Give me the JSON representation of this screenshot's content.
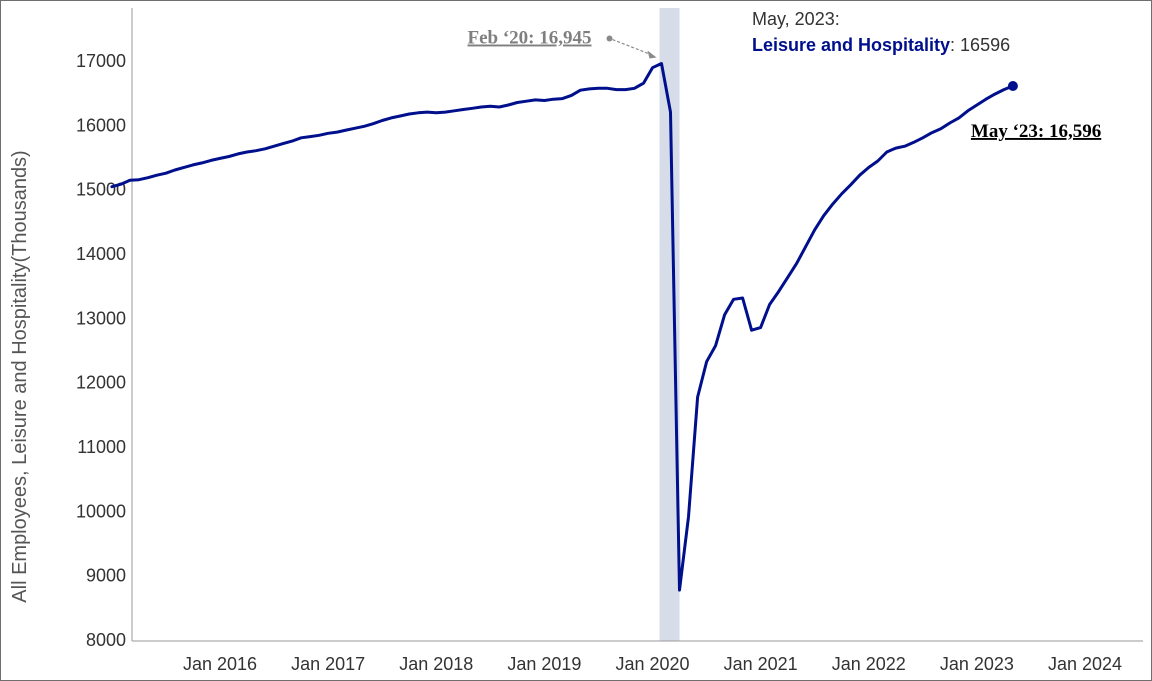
{
  "chart_data": {
    "type": "line",
    "ylabel": "All Employees, Leisure and Hospitality(Thousands)",
    "xlabel": "",
    "ylim": [
      8000,
      17600
    ],
    "yticks": [
      8000,
      9000,
      10000,
      11000,
      12000,
      13000,
      14000,
      15000,
      16000,
      17000
    ],
    "xticks": [
      {
        "label": "Jan 2016",
        "value": "2016-01"
      },
      {
        "label": "Jan 2017",
        "value": "2017-01"
      },
      {
        "label": "Jan 2018",
        "value": "2018-01"
      },
      {
        "label": "Jan 2019",
        "value": "2019-01"
      },
      {
        "label": "Jan 2020",
        "value": "2020-01"
      },
      {
        "label": "Jan 2021",
        "value": "2021-01"
      },
      {
        "label": "Jan 2022",
        "value": "2022-01"
      },
      {
        "label": "Jan 2023",
        "value": "2023-01"
      },
      {
        "label": "Jan 2024",
        "value": "2024-01"
      }
    ],
    "xlim": [
      "2015-01",
      "2024-06"
    ],
    "recession_band": {
      "start": "2020-02",
      "end": "2020-04"
    },
    "grid": false,
    "line_color": "#000f8c",
    "band_color": "#d6dde9",
    "series": [
      {
        "name": "Leisure and Hospitality",
        "points": [
          [
            "2015-01",
            15030
          ],
          [
            "2015-02",
            15070
          ],
          [
            "2015-03",
            15130
          ],
          [
            "2015-04",
            15140
          ],
          [
            "2015-05",
            15170
          ],
          [
            "2015-06",
            15210
          ],
          [
            "2015-07",
            15240
          ],
          [
            "2015-08",
            15290
          ],
          [
            "2015-09",
            15330
          ],
          [
            "2015-10",
            15370
          ],
          [
            "2015-11",
            15400
          ],
          [
            "2015-12",
            15440
          ],
          [
            "2016-01",
            15470
          ],
          [
            "2016-02",
            15500
          ],
          [
            "2016-03",
            15540
          ],
          [
            "2016-04",
            15570
          ],
          [
            "2016-05",
            15590
          ],
          [
            "2016-06",
            15620
          ],
          [
            "2016-07",
            15660
          ],
          [
            "2016-08",
            15700
          ],
          [
            "2016-09",
            15740
          ],
          [
            "2016-10",
            15790
          ],
          [
            "2016-11",
            15810
          ],
          [
            "2016-12",
            15830
          ],
          [
            "2017-01",
            15860
          ],
          [
            "2017-02",
            15880
          ],
          [
            "2017-03",
            15910
          ],
          [
            "2017-04",
            15940
          ],
          [
            "2017-05",
            15970
          ],
          [
            "2017-06",
            16010
          ],
          [
            "2017-07",
            16060
          ],
          [
            "2017-08",
            16100
          ],
          [
            "2017-09",
            16130
          ],
          [
            "2017-10",
            16160
          ],
          [
            "2017-11",
            16180
          ],
          [
            "2017-12",
            16190
          ],
          [
            "2018-01",
            16180
          ],
          [
            "2018-02",
            16190
          ],
          [
            "2018-03",
            16210
          ],
          [
            "2018-04",
            16230
          ],
          [
            "2018-05",
            16250
          ],
          [
            "2018-06",
            16270
          ],
          [
            "2018-07",
            16280
          ],
          [
            "2018-08",
            16270
          ],
          [
            "2018-09",
            16300
          ],
          [
            "2018-10",
            16340
          ],
          [
            "2018-11",
            16360
          ],
          [
            "2018-12",
            16380
          ],
          [
            "2019-01",
            16370
          ],
          [
            "2019-02",
            16390
          ],
          [
            "2019-03",
            16400
          ],
          [
            "2019-04",
            16450
          ],
          [
            "2019-05",
            16530
          ],
          [
            "2019-06",
            16550
          ],
          [
            "2019-07",
            16560
          ],
          [
            "2019-08",
            16560
          ],
          [
            "2019-09",
            16540
          ],
          [
            "2019-10",
            16540
          ],
          [
            "2019-11",
            16560
          ],
          [
            "2019-12",
            16640
          ],
          [
            "2020-01",
            16880
          ],
          [
            "2020-02",
            16945
          ],
          [
            "2020-03",
            16190
          ],
          [
            "2020-04",
            8760
          ],
          [
            "2020-05",
            9900
          ],
          [
            "2020-06",
            11760
          ],
          [
            "2020-07",
            12310
          ],
          [
            "2020-08",
            12560
          ],
          [
            "2020-09",
            13040
          ],
          [
            "2020-10",
            13280
          ],
          [
            "2020-11",
            13300
          ],
          [
            "2020-12",
            12800
          ],
          [
            "2021-01",
            12840
          ],
          [
            "2021-02",
            13200
          ],
          [
            "2021-03",
            13400
          ],
          [
            "2021-04",
            13620
          ],
          [
            "2021-05",
            13840
          ],
          [
            "2021-06",
            14100
          ],
          [
            "2021-07",
            14360
          ],
          [
            "2021-08",
            14580
          ],
          [
            "2021-09",
            14760
          ],
          [
            "2021-10",
            14920
          ],
          [
            "2021-11",
            15060
          ],
          [
            "2021-12",
            15210
          ],
          [
            "2022-01",
            15330
          ],
          [
            "2022-02",
            15430
          ],
          [
            "2022-03",
            15570
          ],
          [
            "2022-04",
            15630
          ],
          [
            "2022-05",
            15660
          ],
          [
            "2022-06",
            15720
          ],
          [
            "2022-07",
            15790
          ],
          [
            "2022-08",
            15870
          ],
          [
            "2022-09",
            15930
          ],
          [
            "2022-10",
            16020
          ],
          [
            "2022-11",
            16100
          ],
          [
            "2022-12",
            16210
          ],
          [
            "2023-01",
            16300
          ],
          [
            "2023-02",
            16390
          ],
          [
            "2023-03",
            16470
          ],
          [
            "2023-04",
            16540
          ],
          [
            "2023-05",
            16596
          ]
        ]
      }
    ],
    "tooltip": {
      "date_line": "May, 2023:",
      "series_label": "Leisure and Hospitality",
      "value_text": ": 16596"
    },
    "annotations": {
      "peak": {
        "text": "Feb ‘20: 16,945",
        "x": "2020-02",
        "y": 16945
      },
      "end": {
        "text": "May ‘23: 16,596",
        "x": "2023-05",
        "y": 16596
      }
    }
  }
}
